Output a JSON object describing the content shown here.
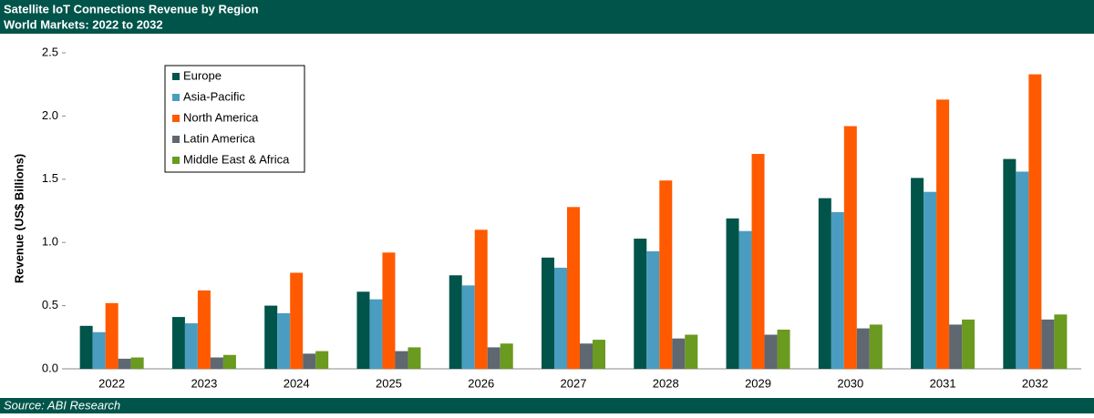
{
  "chart_data": {
    "type": "bar",
    "title": "Satellite IoT Connections Revenue by Region",
    "subtitle": "World Markets: 2022 to 2032",
    "source": "Source: ABI Research",
    "y_label": "Revenue (US$ Billions)",
    "categories": [
      "2022",
      "2023",
      "2024",
      "2025",
      "2026",
      "2027",
      "2028",
      "2029",
      "2030",
      "2031",
      "2032"
    ],
    "series": [
      {
        "name": "Europe",
        "color": "#00544a",
        "values": [
          0.34,
          0.41,
          0.5,
          0.61,
          0.74,
          0.88,
          1.03,
          1.19,
          1.35,
          1.51,
          1.66
        ]
      },
      {
        "name": "Asia-Pacific",
        "color": "#4a9dc0",
        "values": [
          0.29,
          0.36,
          0.44,
          0.55,
          0.66,
          0.8,
          0.93,
          1.09,
          1.24,
          1.4,
          1.56
        ]
      },
      {
        "name": "North America",
        "color": "#ff5a00",
        "values": [
          0.52,
          0.62,
          0.76,
          0.92,
          1.1,
          1.28,
          1.49,
          1.7,
          1.92,
          2.13,
          2.33
        ]
      },
      {
        "name": "Latin America",
        "color": "#5f6770",
        "values": [
          0.08,
          0.09,
          0.12,
          0.14,
          0.17,
          0.2,
          0.24,
          0.27,
          0.32,
          0.35,
          0.39
        ]
      },
      {
        "name": "Middle East & Africa",
        "color": "#6a9a1f",
        "values": [
          0.09,
          0.11,
          0.14,
          0.17,
          0.2,
          0.23,
          0.27,
          0.31,
          0.35,
          0.39,
          0.43
        ]
      }
    ],
    "ylim": [
      0,
      2.5
    ],
    "yticks": [
      {
        "value": 0,
        "label": "0.0"
      },
      0.5,
      {
        "value": 1,
        "label": "1.0"
      },
      1.5,
      {
        "value": 2,
        "label": "2.0"
      },
      2.5
    ],
    "grid": false,
    "legend": "upper-left"
  }
}
